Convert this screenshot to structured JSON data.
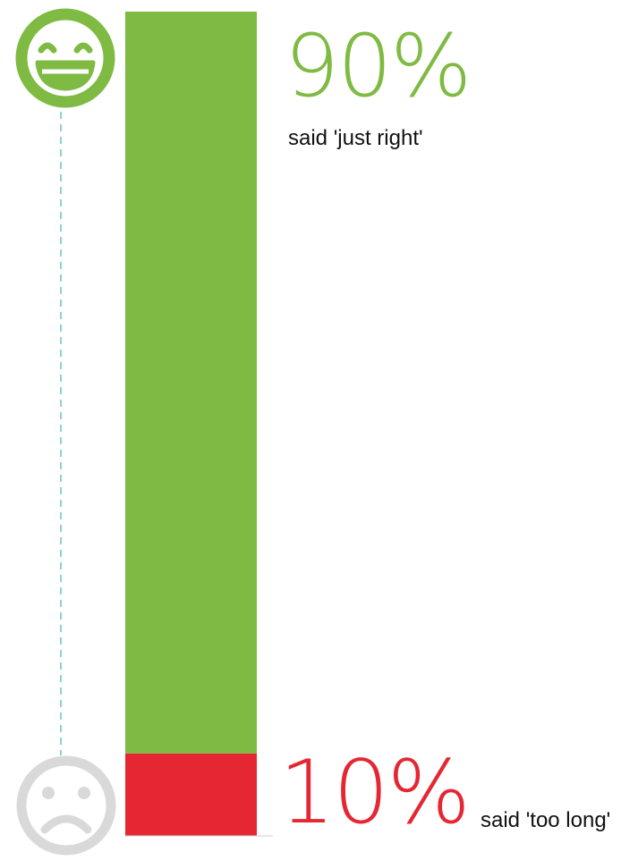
{
  "chart_data": {
    "type": "bar",
    "orientation": "vertical-stacked",
    "series": [
      {
        "label": "90%",
        "caption": "said 'just right'",
        "value": 90,
        "color": "#7fba42",
        "icon": "laughing-face-icon"
      },
      {
        "label": "10%",
        "caption": "said 'too long'",
        "value": 10,
        "color": "#e52733",
        "icon": "sad-face-icon"
      }
    ],
    "ylim": [
      0,
      100
    ],
    "connector_color": "#8fd3cf",
    "sad_icon_color": "#d9d9d9"
  }
}
